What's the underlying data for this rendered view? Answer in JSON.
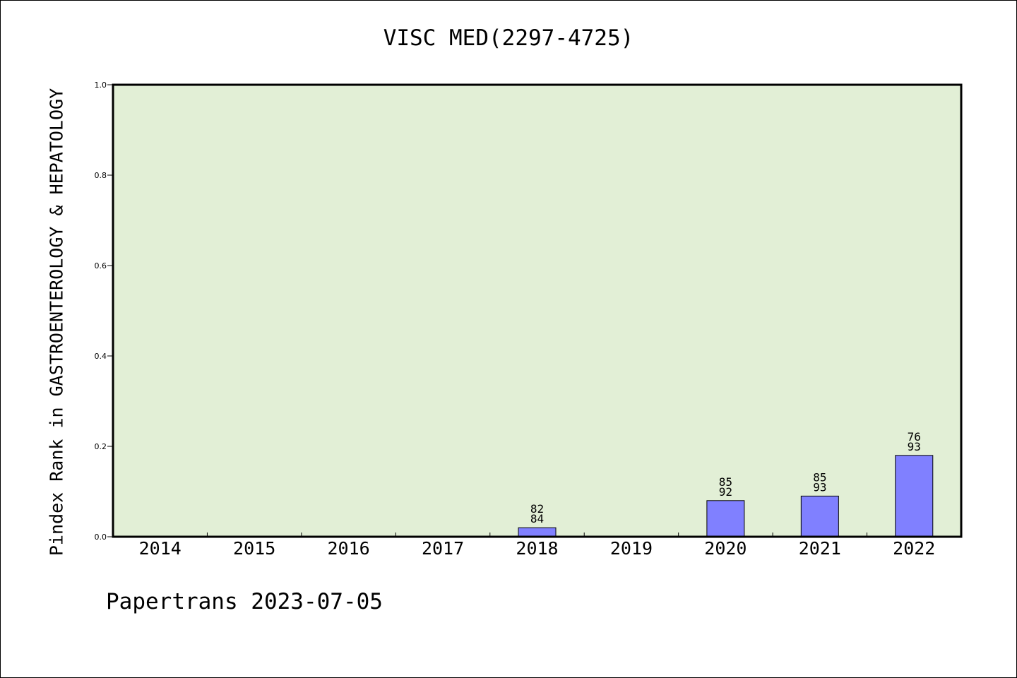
{
  "chart_data": {
    "type": "bar",
    "title": "VISC MED(2297-4725)",
    "xlabel": "",
    "ylabel": "Pindex Rank in GASTROENTEROLOGY & HEPATOLOGY",
    "ylim": [
      0,
      1.0
    ],
    "yticks": [
      "0.0",
      "0.2",
      "0.4",
      "0.6",
      "0.8",
      "1.0"
    ],
    "categories": [
      "2014",
      "2015",
      "2016",
      "2017",
      "2018",
      "2019",
      "2020",
      "2021",
      "2022"
    ],
    "values": [
      null,
      null,
      null,
      null,
      0.02,
      null,
      0.08,
      0.09,
      0.18
    ],
    "labels": [
      null,
      null,
      null,
      null,
      {
        "top": "82",
        "bottom": "84"
      },
      null,
      {
        "top": "85",
        "bottom": "92"
      },
      {
        "top": "85",
        "bottom": "93"
      },
      {
        "top": "76",
        "bottom": "93"
      }
    ],
    "grid": false,
    "colors": {
      "plot_background": "#e2efd6",
      "bar": "#8080ff",
      "axis": "#000000"
    }
  },
  "footer": "Papertrans 2023-07-05"
}
